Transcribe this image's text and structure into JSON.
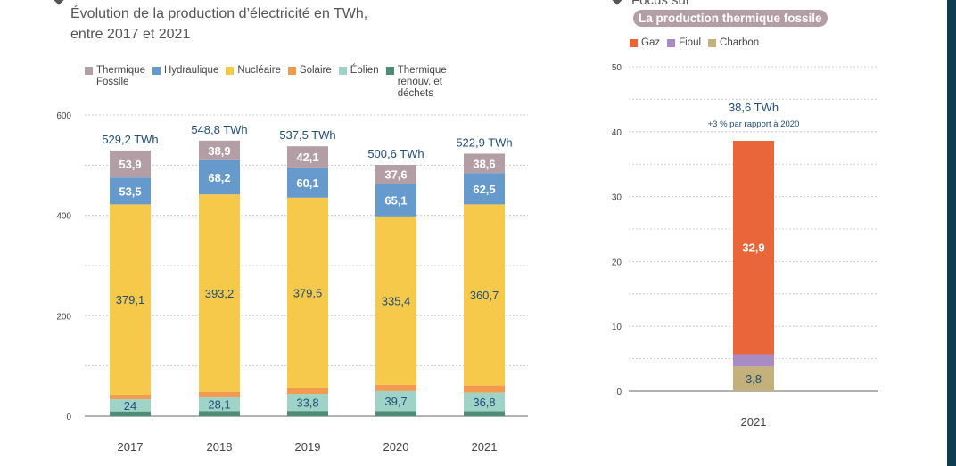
{
  "chart_data": [
    {
      "type": "bar",
      "stacked": true,
      "title": "Évolution de la production d’électricité en TWh, entre 2017 et 2021",
      "title_lines": [
        "Évolution de la production d’électricité en TWh,",
        "entre 2017 et 2021"
      ],
      "categories": [
        "2017",
        "2018",
        "2019",
        "2020",
        "2021"
      ],
      "ylim": [
        0,
        600
      ],
      "yticks": [
        0,
        200,
        400,
        600
      ],
      "grid": true,
      "legend": "top",
      "totals": [
        "529,2 TWh",
        "548,8 TWh",
        "537,5 TWh",
        "500,6 TWh",
        "522,9 TWh"
      ],
      "series": [
        {
          "name": "Thermique renouv. et déchets",
          "color": "#4e8c78",
          "values": [
            9.5,
            10.2,
            10.4,
            10.2,
            10.0
          ],
          "labeled": false
        },
        {
          "name": "Éolien",
          "color": "#9fd3c7",
          "values": [
            24,
            28.1,
            33.8,
            39.7,
            36.8
          ],
          "labels": [
            "24",
            "28,1",
            "33,8",
            "39,7",
            "36,8"
          ],
          "label_color": "#1f4e79"
        },
        {
          "name": "Solaire",
          "color": "#f29b50",
          "values": [
            9.2,
            10.2,
            11.6,
            12.6,
            14.3
          ],
          "labeled": false
        },
        {
          "name": "Nucléaire",
          "color": "#f6c94b",
          "values": [
            379.1,
            393.2,
            379.5,
            335.4,
            360.7
          ],
          "labels": [
            "379,1",
            "393,2",
            "379,5",
            "335,4",
            "360,7"
          ],
          "label_color": "#1f4e79"
        },
        {
          "name": "Hydraulique",
          "color": "#6699cc",
          "values": [
            53.5,
            68.2,
            60.1,
            65.1,
            62.5
          ],
          "labels": [
            "53,5",
            "68,2",
            "60,1",
            "65,1",
            "62,5"
          ],
          "label_color": "#ffffff"
        },
        {
          "name": "Thermique Fossile",
          "color": "#b39ea6",
          "values": [
            53.9,
            38.9,
            42.1,
            37.6,
            38.6
          ],
          "labels": [
            "53,9",
            "38,9",
            "42,1",
            "37,6",
            "38,6"
          ],
          "label_color": "#ffffff"
        }
      ],
      "legend_items": [
        {
          "lines": [
            "Thermique",
            "Fossile"
          ],
          "color": "#b39ea6"
        },
        {
          "lines": [
            "Hydraulique"
          ],
          "color": "#6699cc"
        },
        {
          "lines": [
            "Nucléaire"
          ],
          "color": "#f6c94b"
        },
        {
          "lines": [
            "Solaire"
          ],
          "color": "#f29b50"
        },
        {
          "lines": [
            "Éolien"
          ],
          "color": "#9fd3c7"
        },
        {
          "lines": [
            "Thermique",
            "renouv. et",
            "déchets"
          ],
          "color": "#4e8c78"
        }
      ]
    },
    {
      "type": "bar",
      "stacked": true,
      "heading": "Focus sur",
      "subtitle": "La production thermique fossile",
      "categories": [
        "2021"
      ],
      "ylim": [
        0,
        50
      ],
      "yticks": [
        0,
        10,
        20,
        30,
        40,
        50
      ],
      "grid": true,
      "legend": "top-left",
      "total": "38,6 TWh",
      "note": "+3 % par rapport à 2020",
      "series": [
        {
          "name": "Charbon",
          "color": "#c4b07a",
          "values": [
            3.8
          ],
          "label": "3,8",
          "label_color": "#1f4e79"
        },
        {
          "name": "Fioul",
          "color": "#a98bc4",
          "values": [
            1.9
          ]
        },
        {
          "name": "Gaz",
          "color": "#e8663a",
          "values": [
            32.9
          ],
          "label": "32,9",
          "label_color": "#ffffff"
        }
      ],
      "legend_items": [
        {
          "label": "Gaz",
          "color": "#e8663a"
        },
        {
          "label": "Fioul",
          "color": "#a98bc4"
        },
        {
          "label": "Charbon",
          "color": "#c4b07a"
        }
      ]
    }
  ]
}
